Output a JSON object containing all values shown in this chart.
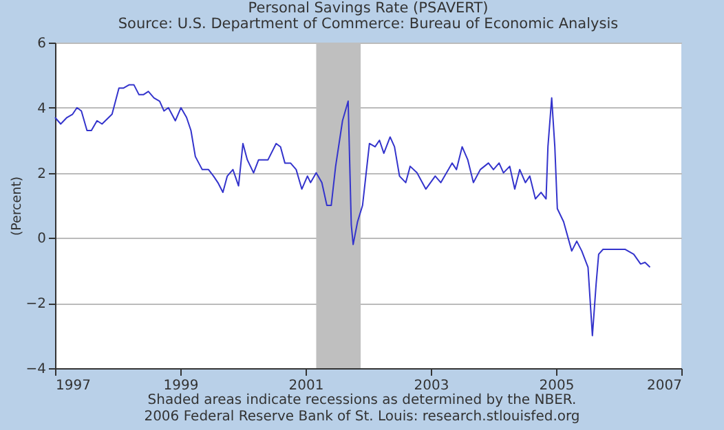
{
  "chart_data": {
    "type": "line",
    "title": "Personal Savings Rate (PSAVERT)",
    "subtitle": "Source: U.S. Department of Commerce: Bureau of Economic Analysis",
    "ylabel": "(Percent)",
    "annotations": [
      "Shaded areas indicate recessions as determined by the NBER.",
      "2006 Federal Reserve Bank of St. Louis: research.stlouisfed.org"
    ],
    "x": [
      1997.0,
      1997.09,
      1997.19,
      1997.28,
      1997.35,
      1997.42,
      1997.51,
      1997.58,
      1997.67,
      1997.75,
      1997.91,
      1998.02,
      1998.09,
      1998.18,
      1998.26,
      1998.34,
      1998.41,
      1998.49,
      1998.58,
      1998.67,
      1998.74,
      1998.81,
      1998.92,
      1999.01,
      1999.1,
      1999.17,
      1999.24,
      1999.35,
      1999.45,
      1999.53,
      1999.6,
      1999.68,
      1999.75,
      1999.84,
      1999.93,
      2000.0,
      2000.07,
      2000.17,
      2000.25,
      2000.4,
      2000.53,
      2000.6,
      2000.67,
      2000.76,
      2000.85,
      2000.94,
      2001.03,
      2001.08,
      2001.17,
      2001.26,
      2001.34,
      2001.41,
      2001.48,
      2001.59,
      2001.68,
      2001.73,
      2001.76,
      2001.83,
      2001.91,
      2002.02,
      2002.11,
      2002.18,
      2002.25,
      2002.35,
      2002.42,
      2002.5,
      2002.6,
      2002.67,
      2002.78,
      2002.92,
      2003.07,
      2003.16,
      2003.34,
      2003.41,
      2003.5,
      2003.59,
      2003.68,
      2003.79,
      2003.92,
      2004.0,
      2004.09,
      2004.16,
      2004.26,
      2004.34,
      2004.42,
      2004.51,
      2004.58,
      2004.67,
      2004.76,
      2004.84,
      2004.87,
      2004.93,
      2004.98,
      2005.02,
      2005.12,
      2005.25,
      2005.33,
      2005.41,
      2005.51,
      2005.58,
      2005.64,
      2005.68,
      2005.75,
      2005.95,
      2006.1,
      2006.24,
      2006.35,
      2006.42,
      2006.5
    ],
    "series": [
      {
        "color": "#3333cc",
        "values": [
          3.7,
          3.5,
          3.7,
          3.8,
          4.0,
          3.9,
          3.3,
          3.3,
          3.6,
          3.5,
          3.8,
          4.6,
          4.6,
          4.7,
          4.7,
          4.4,
          4.4,
          4.5,
          4.3,
          4.2,
          3.9,
          4.0,
          3.6,
          4.0,
          3.7,
          3.3,
          2.5,
          2.1,
          2.1,
          1.9,
          1.7,
          1.4,
          1.9,
          2.1,
          1.6,
          2.9,
          2.4,
          2.0,
          2.4,
          2.4,
          2.9,
          2.8,
          2.3,
          2.3,
          2.1,
          1.5,
          1.9,
          1.7,
          2.0,
          1.7,
          1.0,
          1.0,
          2.2,
          3.6,
          4.2,
          0.4,
          -0.2,
          0.5,
          1.0,
          2.9,
          2.8,
          3.0,
          2.6,
          3.1,
          2.8,
          1.9,
          1.7,
          2.2,
          2.0,
          1.5,
          1.9,
          1.7,
          2.3,
          2.1,
          2.8,
          2.4,
          1.7,
          2.1,
          2.3,
          2.1,
          2.3,
          2.0,
          2.2,
          1.5,
          2.1,
          1.7,
          1.9,
          1.2,
          1.4,
          1.2,
          2.8,
          4.3,
          2.8,
          0.9,
          0.5,
          -0.4,
          -0.1,
          -0.4,
          -0.9,
          -3.0,
          -1.4,
          -0.5,
          -0.35,
          -0.35,
          -0.35,
          -0.5,
          -0.8,
          -0.75,
          -0.9
        ]
      }
    ],
    "xlim": [
      1997,
      2007
    ],
    "xticks": [
      1997,
      1999,
      2001,
      2003,
      2005,
      2007
    ],
    "ylim": [
      -4,
      6
    ],
    "yticks": [
      -4,
      -2,
      0,
      2,
      4,
      6
    ],
    "grid": "y",
    "bands": [
      {
        "axis": "x",
        "from": 2001.17,
        "to": 2001.88,
        "color": "#bfbfbf"
      }
    ]
  }
}
